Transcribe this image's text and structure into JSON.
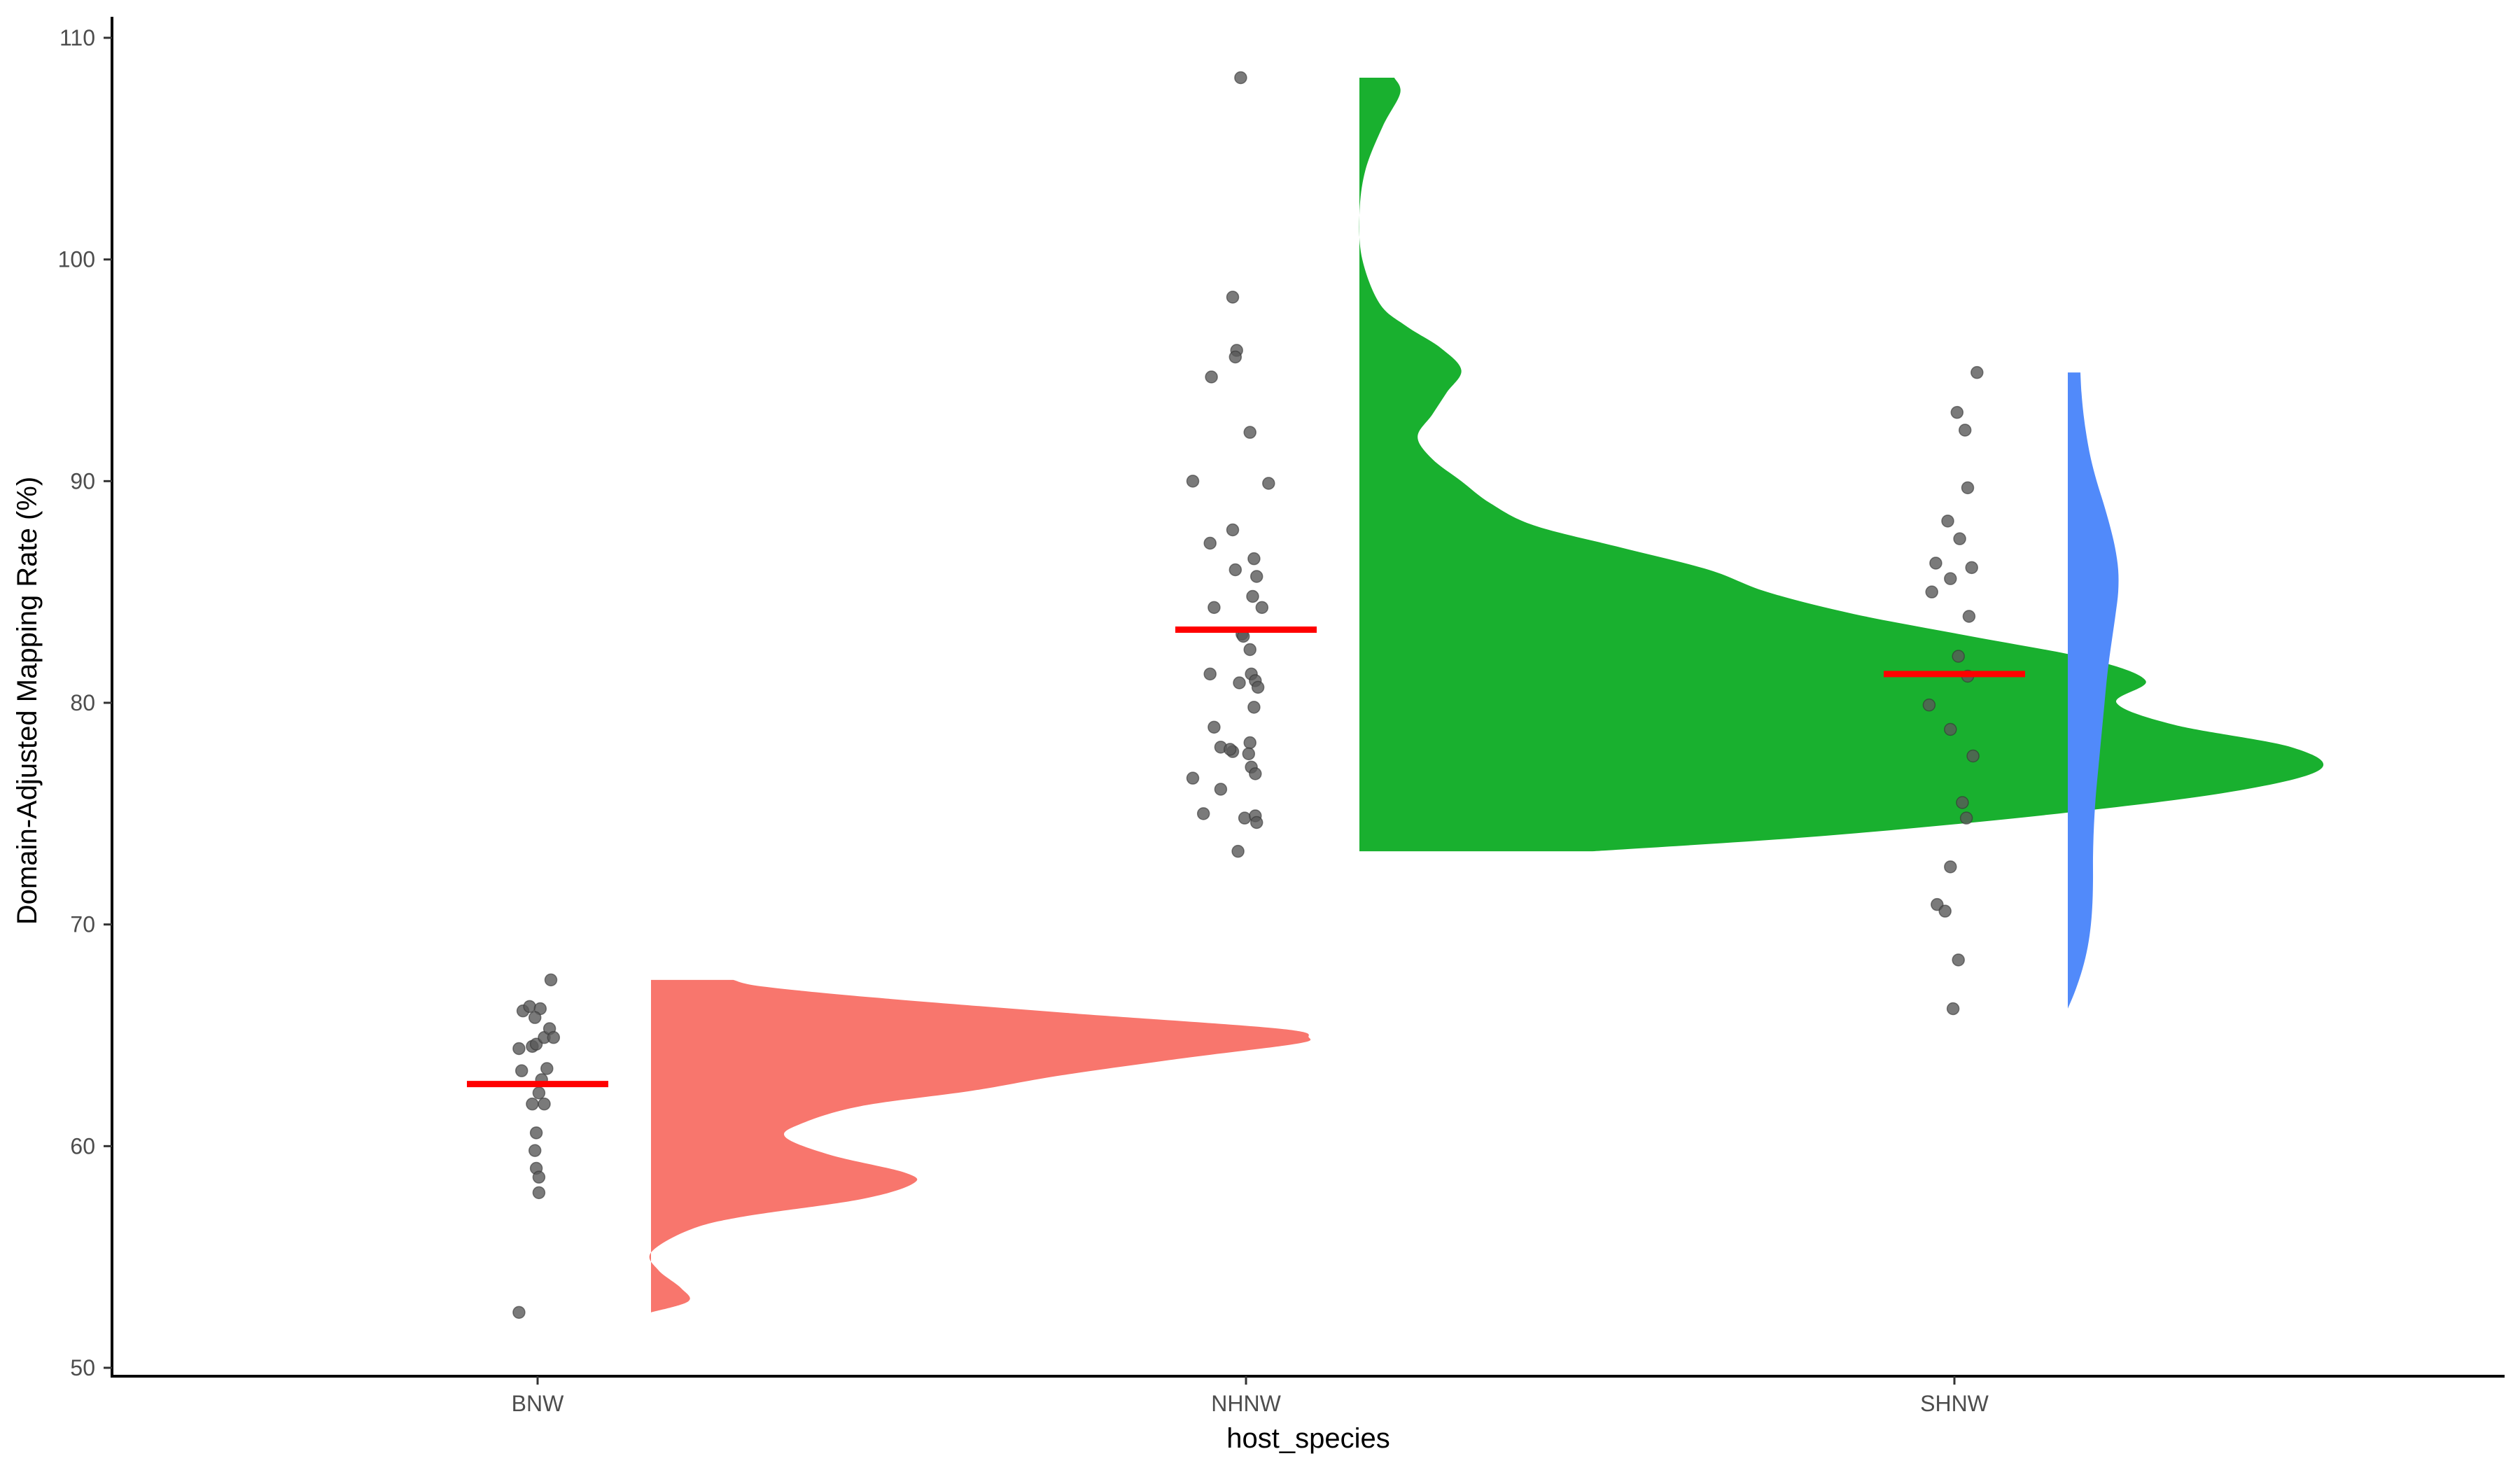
{
  "chart_data": {
    "type": "raincloud",
    "xlabel": "host_species",
    "ylabel": "Domain-Adjusted Mapping Rate (%)",
    "ylim": [
      50,
      110
    ],
    "yticks": [
      50,
      60,
      70,
      80,
      90,
      100,
      110
    ],
    "categories": [
      "BNW",
      "NHNW",
      "SHNW"
    ],
    "legend": "none",
    "grid": false,
    "mean_line_color": "#ff0000",
    "point_color": "#595959",
    "series": [
      {
        "name": "BNW",
        "color": "#F8766D",
        "mean": 62.8,
        "points": [
          {
            "x": -0.11,
            "y": 66.1
          },
          {
            "x": -0.06,
            "y": 66.3
          },
          {
            "x": 0.02,
            "y": 66.2
          },
          {
            "x": 0.1,
            "y": 67.5
          },
          {
            "x": -0.14,
            "y": 64.4
          },
          {
            "x": -0.02,
            "y": 65.8
          },
          {
            "x": -0.04,
            "y": 64.5
          },
          {
            "x": -0.01,
            "y": 64.6
          },
          {
            "x": 0.05,
            "y": 64.9
          },
          {
            "x": 0.09,
            "y": 65.3
          },
          {
            "x": 0.12,
            "y": 64.9
          },
          {
            "x": -0.12,
            "y": 63.4
          },
          {
            "x": 0.07,
            "y": 63.5
          },
          {
            "x": 0.03,
            "y": 63.0
          },
          {
            "x": 0.01,
            "y": 62.4
          },
          {
            "x": -0.04,
            "y": 61.9
          },
          {
            "x": 0.05,
            "y": 61.9
          },
          {
            "x": -0.01,
            "y": 60.6
          },
          {
            "x": -0.02,
            "y": 59.8
          },
          {
            "x": -0.01,
            "y": 59.0
          },
          {
            "x": 0.01,
            "y": 58.6
          },
          {
            "x": 0.01,
            "y": 57.9
          },
          {
            "x": -0.14,
            "y": 52.5
          }
        ],
        "density": [
          {
            "y": 52.5,
            "d": 0.0
          },
          {
            "y": 53.0,
            "d": 0.05
          },
          {
            "y": 53.6,
            "d": 0.04
          },
          {
            "y": 54.4,
            "d": 0.01
          },
          {
            "y": 55.2,
            "d": 0.0
          },
          {
            "y": 56.2,
            "d": 0.05
          },
          {
            "y": 56.8,
            "d": 0.12
          },
          {
            "y": 57.6,
            "d": 0.28
          },
          {
            "y": 58.3,
            "d": 0.35
          },
          {
            "y": 58.8,
            "d": 0.34
          },
          {
            "y": 59.6,
            "d": 0.24
          },
          {
            "y": 60.4,
            "d": 0.18
          },
          {
            "y": 61.0,
            "d": 0.2
          },
          {
            "y": 61.8,
            "d": 0.28
          },
          {
            "y": 62.5,
            "d": 0.43
          },
          {
            "y": 63.2,
            "d": 0.55
          },
          {
            "y": 64.0,
            "d": 0.72
          },
          {
            "y": 64.6,
            "d": 0.86
          },
          {
            "y": 64.9,
            "d": 0.88
          },
          {
            "y": 65.3,
            "d": 0.84
          },
          {
            "y": 66.0,
            "d": 0.56
          },
          {
            "y": 66.7,
            "d": 0.3
          },
          {
            "y": 67.2,
            "d": 0.15
          },
          {
            "y": 67.5,
            "d": 0.11
          }
        ]
      },
      {
        "name": "NHNW",
        "color": "#19B02F",
        "mean": 83.3,
        "points": [
          {
            "x": -0.04,
            "y": 108.2
          },
          {
            "x": -0.1,
            "y": 98.3
          },
          {
            "x": -0.07,
            "y": 95.9
          },
          {
            "x": -0.08,
            "y": 95.6
          },
          {
            "x": -0.26,
            "y": 94.7
          },
          {
            "x": 0.03,
            "y": 92.2
          },
          {
            "x": -0.4,
            "y": 90.0
          },
          {
            "x": 0.17,
            "y": 89.9
          },
          {
            "x": -0.1,
            "y": 87.8
          },
          {
            "x": -0.27,
            "y": 87.2
          },
          {
            "x": 0.06,
            "y": 86.5
          },
          {
            "x": -0.08,
            "y": 86.0
          },
          {
            "x": 0.08,
            "y": 85.7
          },
          {
            "x": 0.05,
            "y": 84.8
          },
          {
            "x": -0.24,
            "y": 84.3
          },
          {
            "x": 0.12,
            "y": 84.3
          },
          {
            "x": -0.03,
            "y": 83.1
          },
          {
            "x": -0.02,
            "y": 83.0
          },
          {
            "x": 0.03,
            "y": 82.4
          },
          {
            "x": -0.27,
            "y": 81.3
          },
          {
            "x": 0.04,
            "y": 81.3
          },
          {
            "x": 0.07,
            "y": 81.0
          },
          {
            "x": -0.05,
            "y": 80.9
          },
          {
            "x": 0.09,
            "y": 80.7
          },
          {
            "x": 0.06,
            "y": 79.8
          },
          {
            "x": -0.24,
            "y": 78.9
          },
          {
            "x": 0.03,
            "y": 78.2
          },
          {
            "x": -0.19,
            "y": 78.0
          },
          {
            "x": -0.1,
            "y": 77.8
          },
          {
            "x": 0.02,
            "y": 77.7
          },
          {
            "x": -0.12,
            "y": 77.9
          },
          {
            "x": 0.04,
            "y": 77.1
          },
          {
            "x": 0.07,
            "y": 76.8
          },
          {
            "x": -0.4,
            "y": 76.6
          },
          {
            "x": -0.19,
            "y": 76.1
          },
          {
            "x": -0.01,
            "y": 74.8
          },
          {
            "x": 0.07,
            "y": 74.9
          },
          {
            "x": 0.08,
            "y": 74.6
          },
          {
            "x": -0.32,
            "y": 75.0
          },
          {
            "x": -0.06,
            "y": 73.3
          }
        ],
        "density": [
          {
            "y": 73.3,
            "d": 0.08
          },
          {
            "y": 74.0,
            "d": 0.16
          },
          {
            "y": 75.0,
            "d": 0.24
          },
          {
            "y": 76.0,
            "d": 0.3
          },
          {
            "y": 77.0,
            "d": 0.33
          },
          {
            "y": 78.0,
            "d": 0.32
          },
          {
            "y": 79.0,
            "d": 0.28
          },
          {
            "y": 80.0,
            "d": 0.26
          },
          {
            "y": 81.0,
            "d": 0.27
          },
          {
            "y": 82.0,
            "d": 0.25
          },
          {
            "y": 83.0,
            "d": 0.21
          },
          {
            "y": 84.0,
            "d": 0.17
          },
          {
            "y": 85.0,
            "d": 0.14
          },
          {
            "y": 86.0,
            "d": 0.12
          },
          {
            "y": 87.0,
            "d": 0.09
          },
          {
            "y": 88.0,
            "d": 0.06
          },
          {
            "y": 89.0,
            "d": 0.045
          },
          {
            "y": 90.0,
            "d": 0.035
          },
          {
            "y": 91.0,
            "d": 0.025
          },
          {
            "y": 92.0,
            "d": 0.02
          },
          {
            "y": 93.0,
            "d": 0.025
          },
          {
            "y": 94.0,
            "d": 0.03
          },
          {
            "y": 95.0,
            "d": 0.035
          },
          {
            "y": 96.0,
            "d": 0.028
          },
          {
            "y": 97.0,
            "d": 0.016
          },
          {
            "y": 98.0,
            "d": 0.007
          },
          {
            "y": 100.0,
            "d": 0.001
          },
          {
            "y": 102.0,
            "d": 0.0
          },
          {
            "y": 104.0,
            "d": 0.002
          },
          {
            "y": 106.0,
            "d": 0.008
          },
          {
            "y": 107.5,
            "d": 0.014
          },
          {
            "y": 108.2,
            "d": 0.012
          }
        ]
      },
      {
        "name": "SHNW",
        "color": "#518AFA",
        "mean": 81.3,
        "points": [
          {
            "x": 0.17,
            "y": 94.9
          },
          {
            "x": 0.02,
            "y": 93.1
          },
          {
            "x": 0.08,
            "y": 92.3
          },
          {
            "x": 0.1,
            "y": 89.7
          },
          {
            "x": -0.05,
            "y": 88.2
          },
          {
            "x": 0.04,
            "y": 87.4
          },
          {
            "x": -0.14,
            "y": 86.3
          },
          {
            "x": 0.13,
            "y": 86.1
          },
          {
            "x": -0.03,
            "y": 85.6
          },
          {
            "x": -0.17,
            "y": 85.0
          },
          {
            "x": 0.11,
            "y": 83.9
          },
          {
            "x": 0.03,
            "y": 82.1
          },
          {
            "x": 0.1,
            "y": 81.2
          },
          {
            "x": -0.19,
            "y": 79.9
          },
          {
            "x": -0.03,
            "y": 78.8
          },
          {
            "x": 0.14,
            "y": 77.6
          },
          {
            "x": 0.06,
            "y": 75.5
          },
          {
            "x": 0.09,
            "y": 74.8
          },
          {
            "x": -0.03,
            "y": 72.6
          },
          {
            "x": -0.13,
            "y": 70.9
          },
          {
            "x": -0.07,
            "y": 70.6
          },
          {
            "x": 0.03,
            "y": 68.4
          },
          {
            "x": -0.01,
            "y": 66.2
          }
        ],
        "density": [
          {
            "y": 66.2,
            "d": 0.0
          },
          {
            "y": 67.0,
            "d": 0.014
          },
          {
            "y": 68.0,
            "d": 0.028
          },
          {
            "y": 69.0,
            "d": 0.038
          },
          {
            "y": 70.0,
            "d": 0.044
          },
          {
            "y": 71.0,
            "d": 0.047
          },
          {
            "y": 72.0,
            "d": 0.048
          },
          {
            "y": 73.0,
            "d": 0.048
          },
          {
            "y": 74.0,
            "d": 0.049
          },
          {
            "y": 75.0,
            "d": 0.051
          },
          {
            "y": 76.0,
            "d": 0.054
          },
          {
            "y": 77.0,
            "d": 0.058
          },
          {
            "y": 78.0,
            "d": 0.062
          },
          {
            "y": 79.0,
            "d": 0.066
          },
          {
            "y": 80.0,
            "d": 0.07
          },
          {
            "y": 81.0,
            "d": 0.074
          },
          {
            "y": 82.0,
            "d": 0.079
          },
          {
            "y": 83.0,
            "d": 0.085
          },
          {
            "y": 84.0,
            "d": 0.091
          },
          {
            "y": 85.0,
            "d": 0.096
          },
          {
            "y": 86.0,
            "d": 0.096
          },
          {
            "y": 87.0,
            "d": 0.09
          },
          {
            "y": 88.0,
            "d": 0.08
          },
          {
            "y": 89.0,
            "d": 0.068
          },
          {
            "y": 90.0,
            "d": 0.055
          },
          {
            "y": 91.0,
            "d": 0.044
          },
          {
            "y": 92.0,
            "d": 0.036
          },
          {
            "y": 93.0,
            "d": 0.03
          },
          {
            "y": 94.0,
            "d": 0.026
          },
          {
            "y": 94.9,
            "d": 0.024
          }
        ]
      }
    ]
  }
}
